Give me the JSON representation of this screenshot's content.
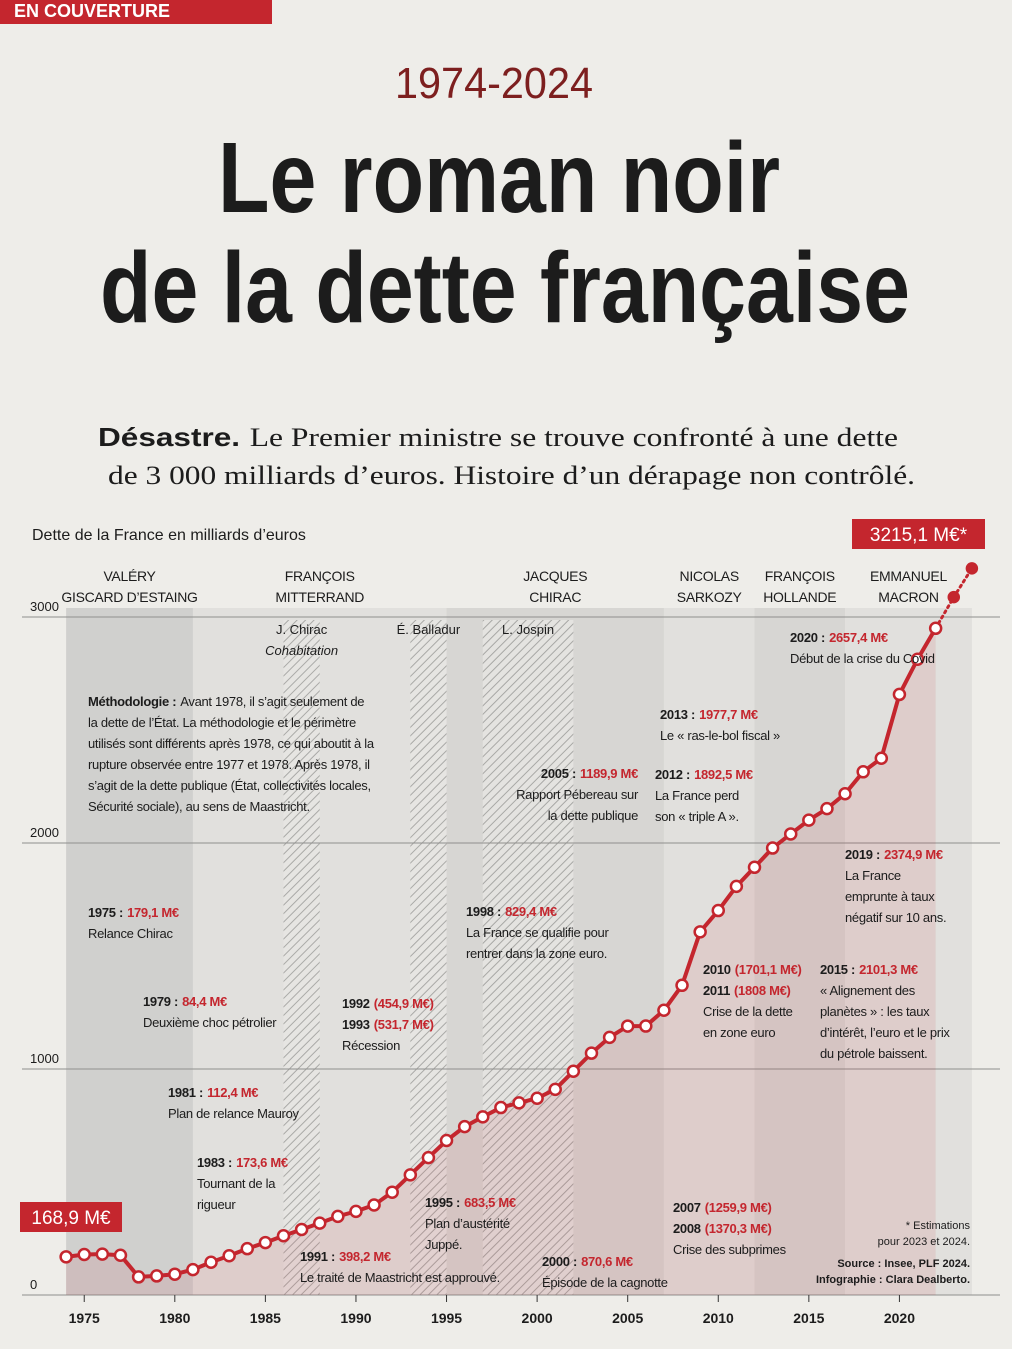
{
  "header": {
    "section": "EN COUVERTURE",
    "period": "1974-2024",
    "title": [
      "Le roman noir",
      "de la dette française"
    ],
    "subtitle": {
      "lead": "Désastre.",
      "lines": [
        "Le Premier ministre se trouve confronté à une dette",
        "de 3 000 milliards d’euros. Histoire d’un dérapage non contrôlé."
      ]
    }
  },
  "chart_data": {
    "type": "line",
    "subtitle": "Dette de la France en milliards d’euros",
    "color": "#c4262e",
    "x": [
      1974,
      1975,
      1976,
      1977,
      1978,
      1979,
      1980,
      1981,
      1982,
      1983,
      1984,
      1985,
      1986,
      1987,
      1988,
      1989,
      1990,
      1991,
      1992,
      1993,
      1994,
      1995,
      1996,
      1997,
      1998,
      1999,
      2000,
      2001,
      2002,
      2003,
      2004,
      2005,
      2006,
      2007,
      2008,
      2009,
      2010,
      2011,
      2012,
      2013,
      2014,
      2015,
      2016,
      2017,
      2018,
      2019,
      2020,
      2021,
      2022,
      2023,
      2024
    ],
    "values": [
      168.9,
      179.1,
      181,
      176,
      80,
      84.4,
      92,
      112.4,
      145,
      173.6,
      205,
      232,
      262,
      290,
      318,
      348,
      370,
      398.2,
      454.9,
      531.7,
      608,
      683.5,
      745,
      788,
      829.4,
      850,
      870.6,
      910,
      990,
      1070,
      1140,
      1189.9,
      1190,
      1259.9,
      1370.3,
      1607,
      1701.1,
      1808,
      1892.5,
      1977.7,
      2040,
      2101.3,
      2152,
      2218,
      2315,
      2374.9,
      2657.4,
      2813,
      2950,
      3088,
      3215.1
    ],
    "value_labels": [
      "168,9 M€",
      null,
      null,
      null,
      null,
      null,
      null,
      null,
      null,
      null,
      null,
      null,
      null,
      null,
      null,
      null,
      null,
      null,
      null,
      null,
      null,
      null,
      null,
      null,
      null,
      null,
      null,
      null,
      null,
      null,
      null,
      null,
      null,
      null,
      null,
      null,
      null,
      null,
      null,
      null,
      null,
      null,
      null,
      null,
      null,
      null,
      null,
      null,
      null,
      null,
      "3215,1 M€*"
    ],
    "estimated_x": [
      2023,
      2024
    ],
    "xlim": [
      1973,
      2025
    ],
    "xticks": [
      1975,
      1980,
      1985,
      1990,
      1995,
      2000,
      2005,
      2010,
      2015,
      2020
    ],
    "ylim": [
      0,
      3000
    ],
    "yticks": [
      0,
      1000,
      2000,
      3000
    ],
    "grid": true,
    "presidents": [
      {
        "name": [
          "VALÉRY",
          "GISCARD D’ESTAING"
        ],
        "start": 1974,
        "end": 1981,
        "color": "#c6c6c4"
      },
      {
        "name": [
          "FRANÇOIS",
          "MITTERRAND"
        ],
        "start": 1981,
        "end": 1995,
        "color": "#dcdbd8"
      },
      {
        "name": [
          "JACQUES",
          "CHIRAC"
        ],
        "start": 1995,
        "end": 2007,
        "color": "#cfcecb"
      },
      {
        "name": [
          "NICOLAS",
          "SARKOZY"
        ],
        "start": 2007,
        "end": 2012,
        "color": "#dcdbd8"
      },
      {
        "name": [
          "FRANÇOIS",
          "HOLLANDE"
        ],
        "start": 2012,
        "end": 2017,
        "color": "#cfcecb"
      },
      {
        "name": [
          "EMMANUEL",
          "MACRON"
        ],
        "start": 2017,
        "end": 2024,
        "color": "#dcdbd8"
      }
    ],
    "cohabitations": [
      {
        "name": "J. Chirac",
        "note": "Cohabitation",
        "start": 1986,
        "end": 1988
      },
      {
        "name": "É. Balladur",
        "start": 1993,
        "end": 1995
      },
      {
        "name": "L. Jospin",
        "start": 1997,
        "end": 2002
      }
    ],
    "methodology": {
      "label": "Méthodologie :",
      "lines": [
        "Avant 1978, il s’agit seulement de",
        "la dette de l’État. La méthodologie et le périmètre",
        "utilisés sont différents après 1978, ce qui aboutit à la",
        "rupture observée entre 1977 et 1978. Après 1978, il",
        "s’agit de la dette publique (État, collectivités locales,",
        "Sécurité sociale), au sens de Maastricht."
      ]
    },
    "annotations": [
      {
        "heads": [
          {
            "label": "1975 :",
            "amount": "179,1 M€"
          }
        ],
        "text": [
          "Relance Chirac"
        ]
      },
      {
        "heads": [
          {
            "label": "1979 :",
            "amount": "84,4 M€"
          }
        ],
        "text": [
          "Deuxième choc pétrolier"
        ]
      },
      {
        "heads": [
          {
            "label": "1981 :",
            "amount": "112,4 M€"
          }
        ],
        "text": [
          "Plan de relance Mauroy"
        ]
      },
      {
        "heads": [
          {
            "label": "1983 :",
            "amount": "173,6 M€"
          }
        ],
        "text": [
          "Tournant de la",
          "rigueur"
        ]
      },
      {
        "heads": [
          {
            "label": "1991 :",
            "amount": "398,2 M€"
          }
        ],
        "text": [
          "Le traité de Maastricht est approuvé."
        ]
      },
      {
        "heads": [
          {
            "label": "1992",
            "amount": "(454,9 M€)"
          },
          {
            "label": "1993",
            "amount": "(531,7 M€)"
          }
        ],
        "text": [
          "Récession"
        ]
      },
      {
        "heads": [
          {
            "label": "1995 :",
            "amount": "683,5 M€"
          }
        ],
        "text": [
          "Plan d’austérité",
          "Juppé."
        ]
      },
      {
        "heads": [
          {
            "label": "1998 :",
            "amount": "829,4 M€"
          }
        ],
        "text": [
          "La France se qualifie pour",
          "rentrer dans la zone euro."
        ]
      },
      {
        "heads": [
          {
            "label": "2000 :",
            "amount": "870,6 M€"
          }
        ],
        "text": [
          "Épisode de la cagnotte"
        ]
      },
      {
        "heads": [
          {
            "label": "2005 :",
            "amount": "1189,9 M€"
          }
        ],
        "text": [
          "Rapport Pébereau sur",
          "la dette publique"
        ]
      },
      {
        "heads": [
          {
            "label": "2007",
            "amount": "(1259,9 M€)"
          },
          {
            "label": "2008",
            "amount": "(1370,3 M€)"
          }
        ],
        "text": [
          "Crise des subprimes"
        ]
      },
      {
        "heads": [
          {
            "label": "2010",
            "amount": "(1701,1 M€)"
          },
          {
            "label": "2011",
            "amount": "(1808 M€)"
          }
        ],
        "text": [
          "Crise de la dette",
          "en zone euro"
        ]
      },
      {
        "heads": [
          {
            "label": "2012 :",
            "amount": "1892,5 M€"
          }
        ],
        "text": [
          "La France perd",
          "son « triple A »."
        ]
      },
      {
        "heads": [
          {
            "label": "2013 :",
            "amount": "1977,7 M€"
          }
        ],
        "text": [
          "Le « ras-le-bol fiscal »"
        ]
      },
      {
        "heads": [
          {
            "label": "2015 :",
            "amount": "2101,3 M€"
          }
        ],
        "text": [
          "« Alignement des",
          "planètes » : les taux",
          "d’intérêt, l’euro et le prix",
          "du pétrole baissent."
        ]
      },
      {
        "heads": [
          {
            "label": "2019 :",
            "amount": "2374,9 M€"
          }
        ],
        "text": [
          "La France",
          "emprunte à taux",
          "négatif sur 10 ans."
        ]
      },
      {
        "heads": [
          {
            "label": "2020 :",
            "amount": "2657,4 M€"
          }
        ],
        "text": [
          "Début de la crise du Covid"
        ]
      }
    ],
    "notes": [
      "* Estimations",
      "pour 2023 et 2024.",
      "Source : Insee, PLF 2024.",
      "Infographie : Clara Dealberto."
    ]
  }
}
